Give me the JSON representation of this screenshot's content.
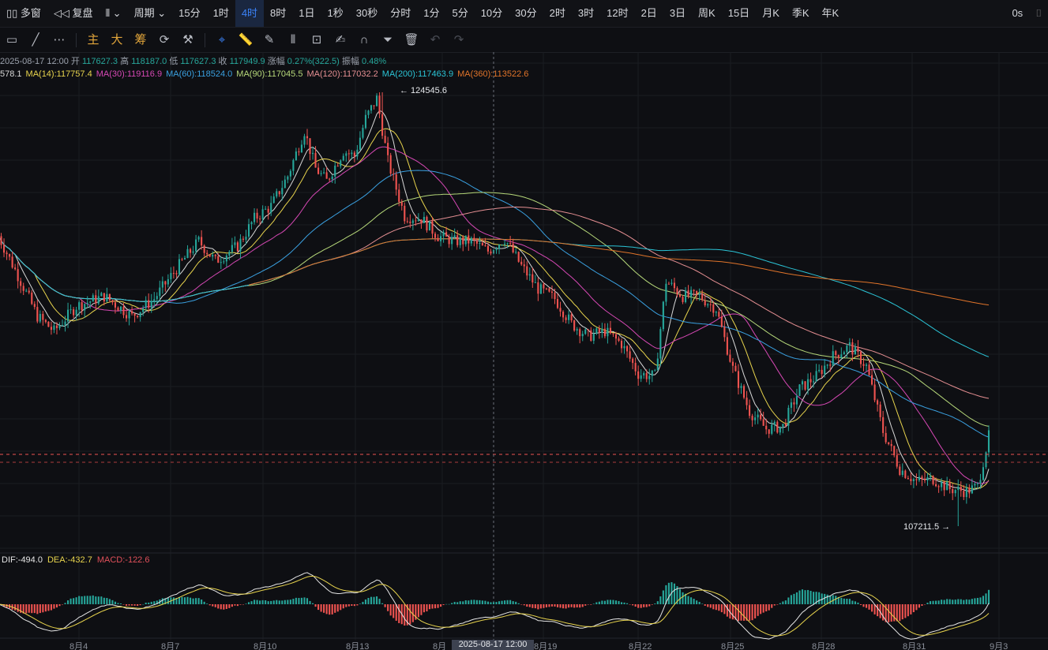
{
  "topbar": {
    "multi_window": "多窗",
    "restore_rights": "复盘",
    "period": "周期",
    "intervals": [
      "15分",
      "1时",
      "4时",
      "8时",
      "1日",
      "1秒",
      "30秒",
      "分时",
      "1分",
      "5分",
      "10分",
      "30分",
      "2时",
      "3时",
      "12时",
      "2日",
      "3日",
      "周K",
      "15日",
      "月K",
      "季K",
      "年K"
    ],
    "active_interval": "4时",
    "countdown": "0s"
  },
  "toolbar": {
    "indicators": [
      "主",
      "大",
      "筹"
    ]
  },
  "ohlc": {
    "date": "2025-08-17 12:00",
    "open_label": "开",
    "open": "117627.3",
    "high_label": "高",
    "high": "118187.0",
    "low_label": "低",
    "low": "117627.3",
    "close_label": "收",
    "close": "117949.9",
    "change_label": "涨幅",
    "change": "0.27%(322.5)",
    "amp_label": "振幅",
    "amp": "0.48%"
  },
  "ma_legend": [
    {
      "label": "578.1",
      "color": "#d9d9d9"
    },
    {
      "label": "MA(14):117757.4",
      "color": "#e8d44d"
    },
    {
      "label": "MA(30):119116.9",
      "color": "#d648b4"
    },
    {
      "label": "MA(60):118524.0",
      "color": "#3aa0e0"
    },
    {
      "label": "MA(90):117045.5",
      "color": "#b7d97a"
    },
    {
      "label": "MA(120):117032.2",
      "color": "#e58f92"
    },
    {
      "label": "MA(200):117463.9",
      "color": "#2bc4d6"
    },
    {
      "label": "MA(360):113522.6",
      "color": "#e0742a"
    }
  ],
  "macd_legend": [
    {
      "label": "DIF:-494.0",
      "color": "#e6e6e6"
    },
    {
      "label": "DEA:-432.7",
      "color": "#e8d44d"
    },
    {
      "label": "MACD:-122.6",
      "color": "#e0505a"
    }
  ],
  "annotations": {
    "high": "124545.6",
    "low": "107211.5"
  },
  "crosshair_date": "2025-08-17 12:00",
  "chart_data": {
    "type": "candlestick",
    "x_ticks": [
      "8月4",
      "8月7",
      "8月10",
      "8月13",
      "8月",
      "8月19",
      "8月22",
      "8月25",
      "8月28",
      "8月31",
      "9月3"
    ],
    "price_high": 124545.6,
    "price_low": 107211.5,
    "last_close": 117949.9,
    "colors": {
      "up": "#26a69a",
      "down": "#ef5350"
    }
  }
}
